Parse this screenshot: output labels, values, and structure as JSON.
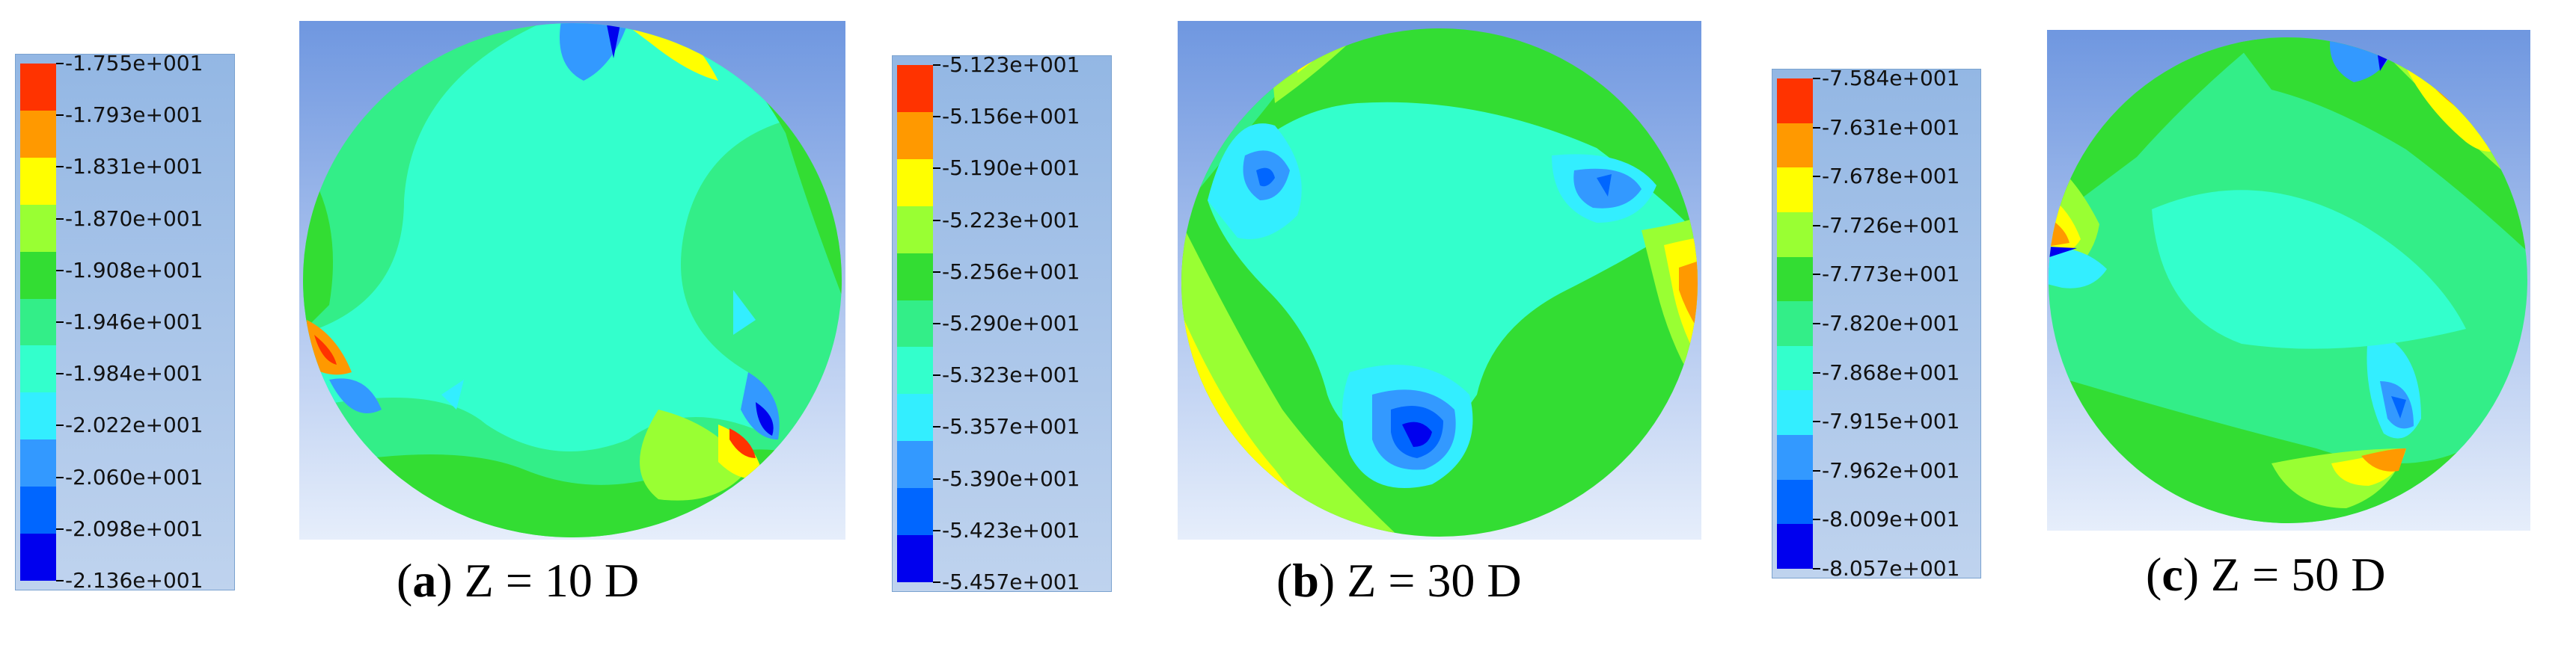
{
  "colorbar_colors": [
    "#ff3300",
    "#ff9900",
    "#ffff00",
    "#99ff33",
    "#33dd33",
    "#33ee88",
    "#33ffcc",
    "#33eeff",
    "#3399ff",
    "#0066ff",
    "#0000ee"
  ],
  "panels": [
    {
      "legend_labels": [
        "-1.755e+001",
        "-1.793e+001",
        "-1.831e+001",
        "-1.870e+001",
        "-1.908e+001",
        "-1.946e+001",
        "-1.984e+001",
        "-2.022e+001",
        "-2.060e+001",
        "-2.098e+001",
        "-2.136e+001"
      ],
      "caption_letter": "a",
      "caption_text": " Z = 10 D"
    },
    {
      "legend_labels": [
        "-5.123e+001",
        "-5.156e+001",
        "-5.190e+001",
        "-5.223e+001",
        "-5.256e+001",
        "-5.290e+001",
        "-5.323e+001",
        "-5.357e+001",
        "-5.390e+001",
        "-5.423e+001",
        "-5.457e+001"
      ],
      "caption_letter": "b",
      "caption_text": " Z = 30 D"
    },
    {
      "legend_labels": [
        "-7.584e+001",
        "-7.631e+001",
        "-7.678e+001",
        "-7.726e+001",
        "-7.773e+001",
        "-7.820e+001",
        "-7.868e+001",
        "-7.915e+001",
        "-7.962e+001",
        "-8.009e+001",
        "-8.057e+001"
      ],
      "caption_letter": "c",
      "caption_text": " Z = 50 D"
    }
  ]
}
